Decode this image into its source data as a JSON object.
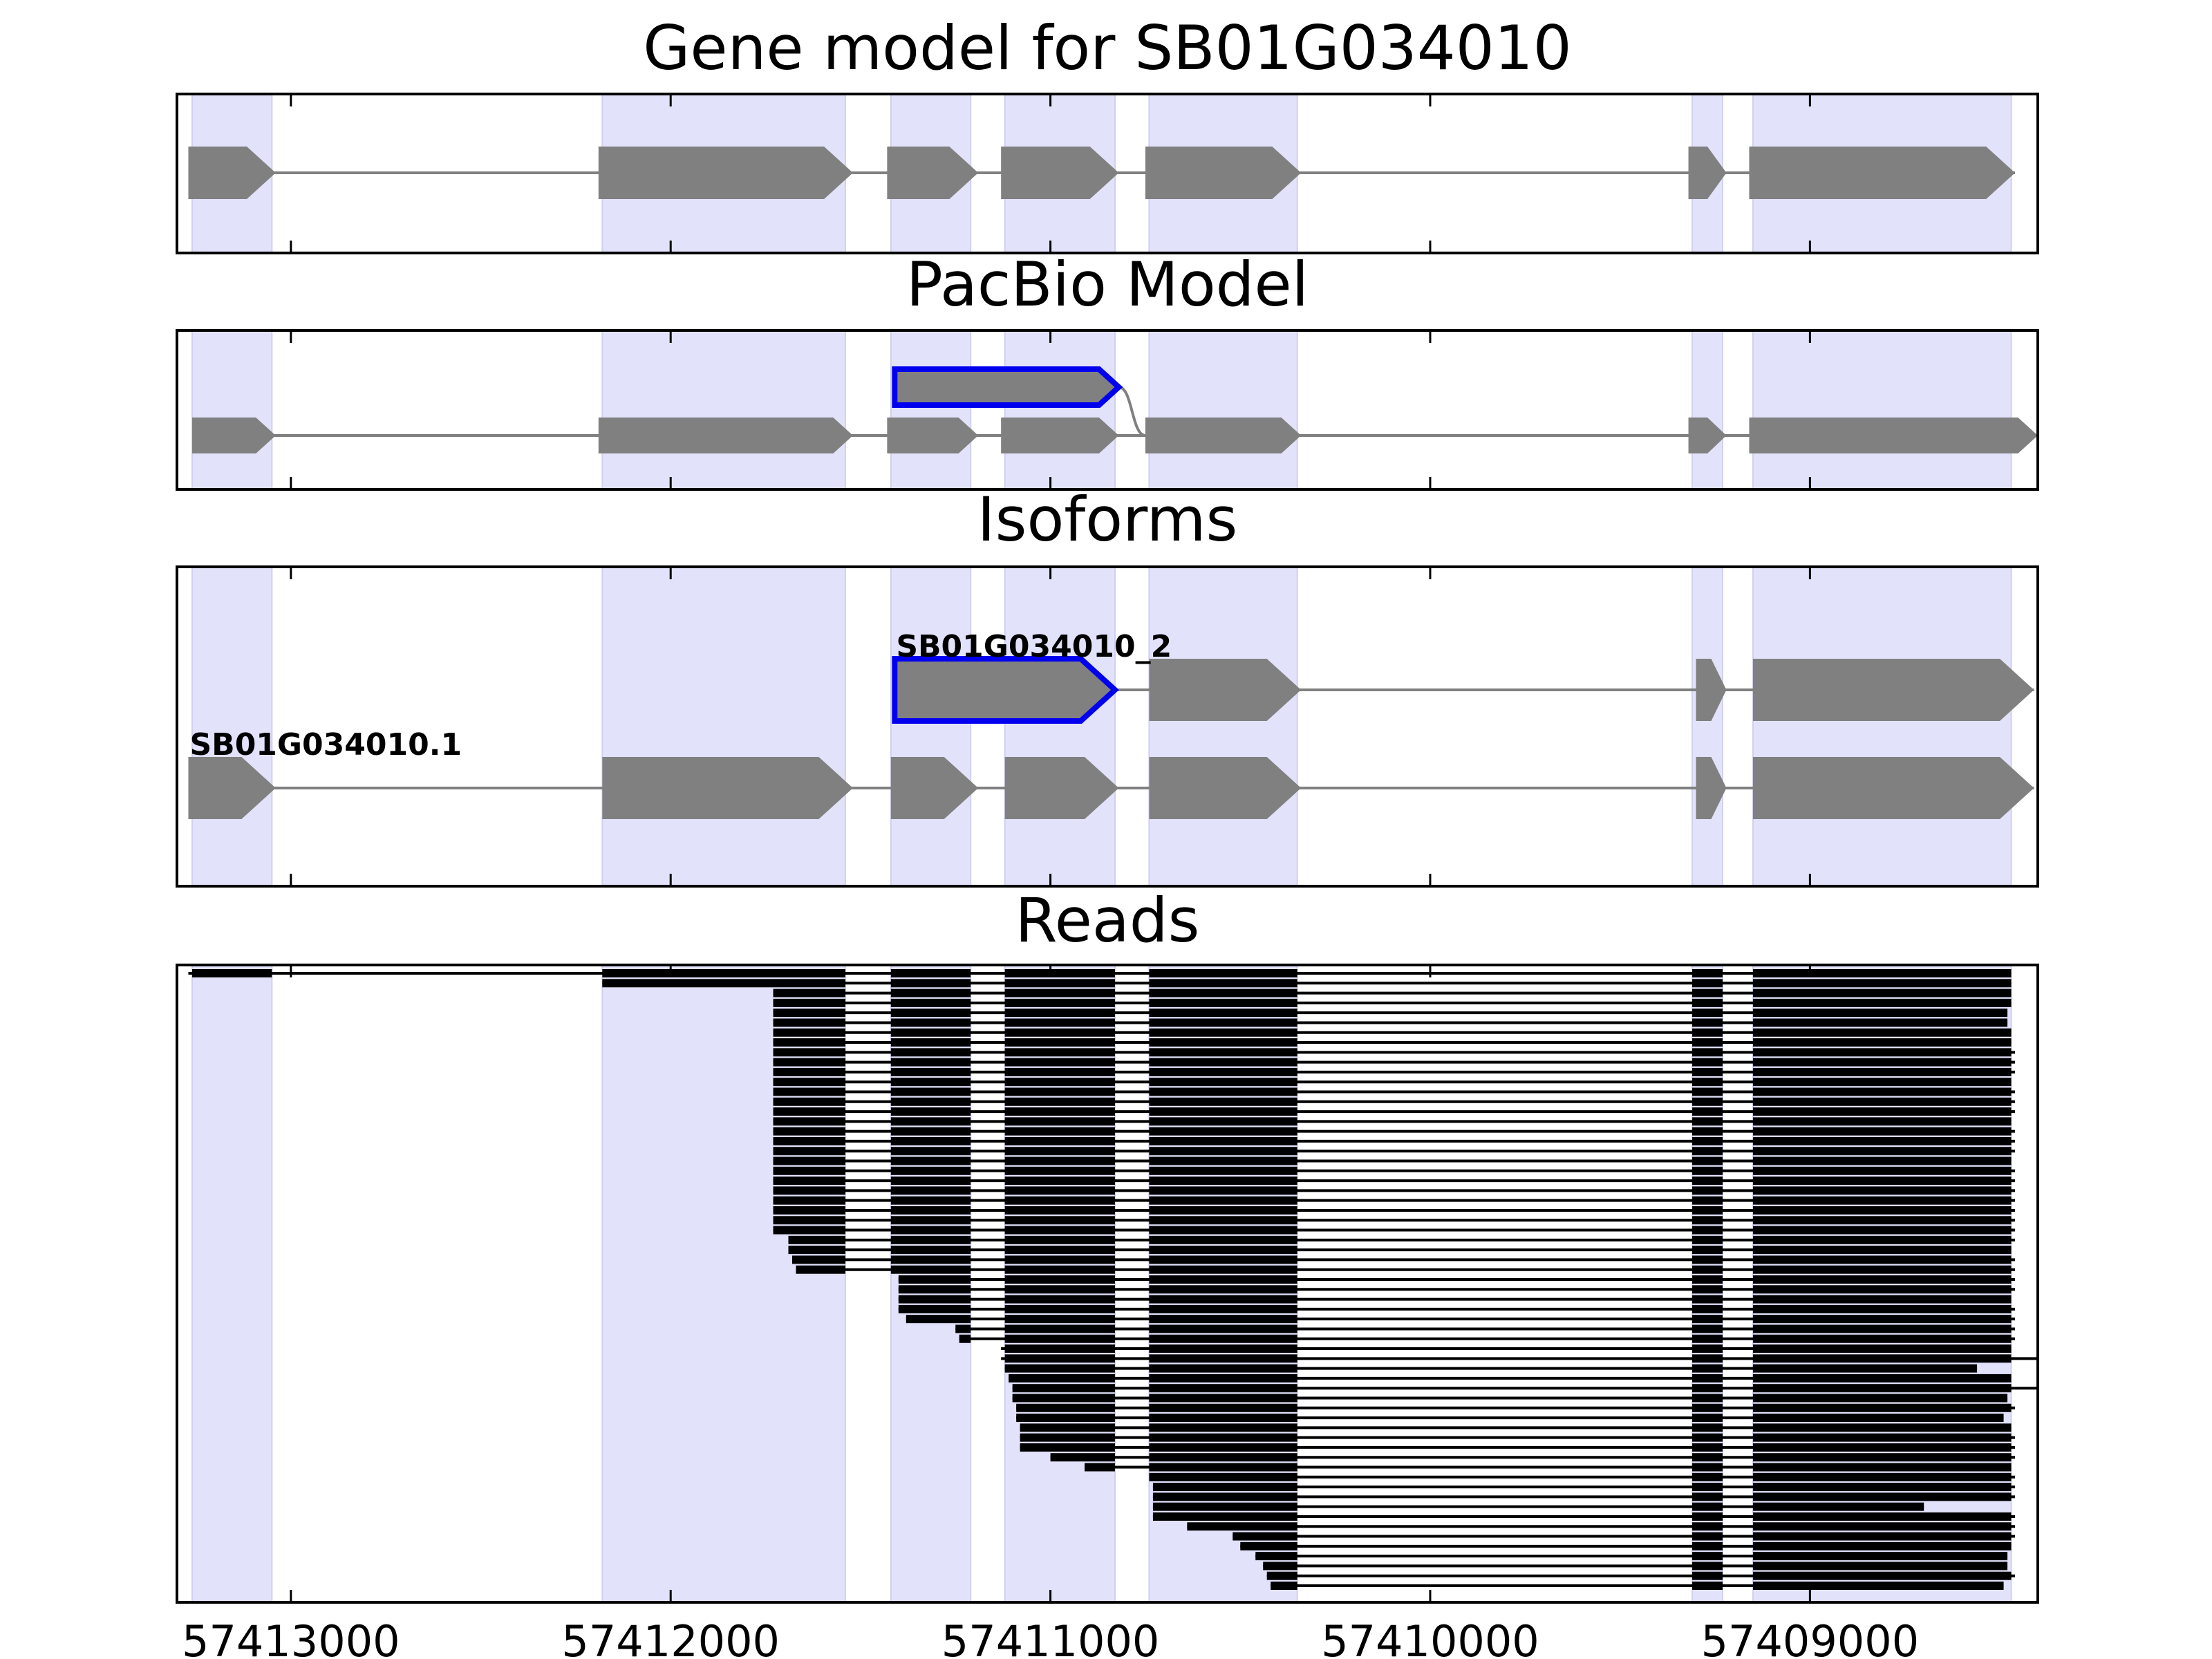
{
  "chart_data": {
    "type": "gene-model",
    "xaxis_reversed": true,
    "xlim": [
      57413300,
      57408400
    ],
    "xticks": [
      57413000,
      57412000,
      57411000,
      57410000,
      57409000
    ],
    "xtick_labels": [
      "57413000",
      "57412000",
      "57411000",
      "57410000",
      "57409000"
    ],
    "exon_highlights": [
      [
        57413260,
        57413050
      ],
      [
        57412180,
        57411540
      ],
      [
        57411420,
        57411210
      ],
      [
        57411120,
        57410830
      ],
      [
        57410740,
        57410350
      ],
      [
        57409310,
        57409230
      ],
      [
        57409150,
        57408470
      ]
    ],
    "panels": [
      {
        "title": "Gene model for SB01G034010",
        "isoforms": [
          {
            "label": "",
            "exons": [
              [
                57413270,
                57413040
              ],
              [
                57412190,
                57411520
              ],
              [
                57411430,
                57411190
              ],
              [
                57411130,
                57410820
              ],
              [
                57410750,
                57410340
              ],
              [
                57409320,
                57409220
              ],
              [
                57409160,
                57408460
              ]
            ]
          }
        ]
      },
      {
        "title": "PacBio Model",
        "isoforms": [
          {
            "label": "",
            "highlight_exon": 0,
            "exons": [
              [
                57411410,
                57410820
              ]
            ],
            "connector_to": 57410750
          },
          {
            "label": "",
            "exons": [
              [
                57413260,
                57413040
              ],
              [
                57412190,
                57411520
              ],
              [
                57411430,
                57411190
              ],
              [
                57411130,
                57410820
              ],
              [
                57410750,
                57410340
              ],
              [
                57409320,
                57409220
              ],
              [
                57409160,
                57408400
              ]
            ]
          }
        ]
      },
      {
        "title": "Isoforms",
        "isoforms": [
          {
            "label": "SB01G034010_2",
            "highlight_exon": 0,
            "exons": [
              [
                57411410,
                57410830
              ],
              [
                57410740,
                57410340
              ],
              [
                57409300,
                57409220
              ],
              [
                57409150,
                57408410
              ]
            ]
          },
          {
            "label": "SB01G034010.1",
            "exons": [
              [
                57413270,
                57413040
              ],
              [
                57412180,
                57411520
              ],
              [
                57411420,
                57411190
              ],
              [
                57411120,
                57410820
              ],
              [
                57410740,
                57410340
              ],
              [
                57409300,
                57409220
              ],
              [
                57409150,
                57408410
              ]
            ]
          }
        ]
      },
      {
        "title": "Reads",
        "read_count": 63,
        "read_starts": [
          57413270,
          57412180,
          57411730,
          57411730,
          57411730,
          57411730,
          57411730,
          57411730,
          57411730,
          57411730,
          57411730,
          57411730,
          57411730,
          57411730,
          57411730,
          57411730,
          57411730,
          57411730,
          57411730,
          57411730,
          57411730,
          57411730,
          57411730,
          57411730,
          57411730,
          57411730,
          57411730,
          57411690,
          57411690,
          57411680,
          57411670,
          57411400,
          57411400,
          57411400,
          57411400,
          57411380,
          57411250,
          57411240,
          57411130,
          57411130,
          57411120,
          57411110,
          57411100,
          57411100,
          57411090,
          57411090,
          57411080,
          57411080,
          57411080,
          57411000,
          57410910,
          57410740,
          57410730,
          57410730,
          57410730,
          57410730,
          57410640,
          57410520,
          57410500,
          57410460,
          57410440,
          57410430,
          57410420
        ],
        "read_ends": [
          57408470,
          57408470,
          57408470,
          57408470,
          57408480,
          57408480,
          57408470,
          57408470,
          57408460,
          57408460,
          57408460,
          57408470,
          57408460,
          57408460,
          57408460,
          57408470,
          57408460,
          57408460,
          57408460,
          57408470,
          57408460,
          57408460,
          57408460,
          57408460,
          57408460,
          57408460,
          57408460,
          57408460,
          57408470,
          57408460,
          57408460,
          57408460,
          57408460,
          57408470,
          57408460,
          57408460,
          57408460,
          57408460,
          57408470,
          57408400,
          57408560,
          57408470,
          57408400,
          57408480,
          57408460,
          57408490,
          57408470,
          57408460,
          57408460,
          57408460,
          57408470,
          57408460,
          57408460,
          57408460,
          57408700,
          57408460,
          57408460,
          57408460,
          57408470,
          57408480,
          57408480,
          57408460,
          57408490
        ]
      }
    ]
  }
}
